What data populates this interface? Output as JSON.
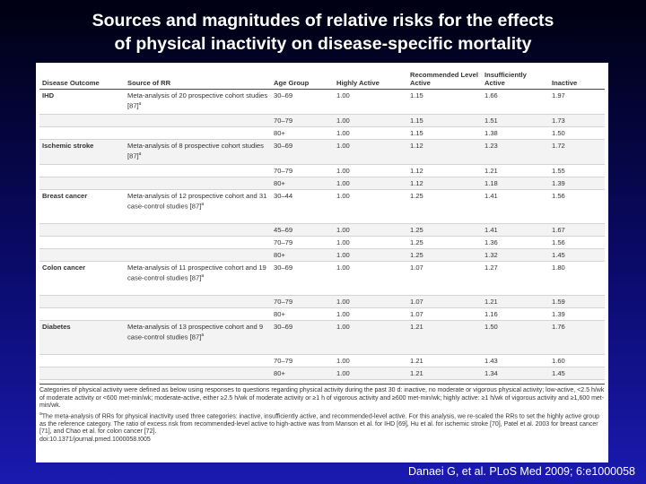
{
  "slide": {
    "title_lines": [
      "Sources and magnitudes of relative risks for the effects",
      "of physical inactivity on disease-specific mortality"
    ],
    "citation": "Danaei G, et al. PLoS Med 2009; 6:e1000058"
  },
  "table": {
    "headers": [
      "Disease Outcome",
      "Source of RR",
      "Age Group",
      "Highly Active",
      "Recommended Level Active",
      "Insufficiently Active",
      "Inactive"
    ],
    "groups": [
      {
        "outcome": "IHD",
        "source": "Meta-analysis of 20 prospective cohort studies [87]",
        "note": "a",
        "rows": [
          [
            "30–69",
            "1.00",
            "1.15",
            "1.66",
            "1.97"
          ],
          [
            "70–79",
            "1.00",
            "1.15",
            "1.51",
            "1.73"
          ],
          [
            "80+",
            "1.00",
            "1.15",
            "1.38",
            "1.50"
          ]
        ]
      },
      {
        "outcome": "Ischemic stroke",
        "source": "Meta-analysis of 8 prospective cohort studies [87]",
        "note": "a",
        "rows": [
          [
            "30–69",
            "1.00",
            "1.12",
            "1.23",
            "1.72"
          ],
          [
            "70–79",
            "1.00",
            "1.12",
            "1.21",
            "1.55"
          ],
          [
            "80+",
            "1.00",
            "1.12",
            "1.18",
            "1.39"
          ]
        ]
      },
      {
        "outcome": "Breast cancer",
        "source": "Meta-analysis of 12 prospective cohort and 31 case-control studies [87]",
        "note": "a",
        "rows": [
          [
            "30–44",
            "1.00",
            "1.25",
            "1.41",
            "1.56"
          ],
          [
            "45–69",
            "1.00",
            "1.25",
            "1.41",
            "1.67"
          ],
          [
            "70–79",
            "1.00",
            "1.25",
            "1.36",
            "1.56"
          ],
          [
            "80+",
            "1.00",
            "1.25",
            "1.32",
            "1.45"
          ]
        ]
      },
      {
        "outcome": "Colon cancer",
        "source": "Meta-analysis of 11 prospective cohort and 19 case-control studies [87]",
        "note": "a",
        "rows": [
          [
            "30–69",
            "1.00",
            "1.07",
            "1.27",
            "1.80"
          ],
          [
            "70–79",
            "1.00",
            "1.07",
            "1.21",
            "1.59"
          ],
          [
            "80+",
            "1.00",
            "1.07",
            "1.16",
            "1.39"
          ]
        ]
      },
      {
        "outcome": "Diabetes",
        "source": "Meta-analysis of 13 prospective cohort and 9 case-control studies [87]",
        "note": "a",
        "rows": [
          [
            "30–69",
            "1.00",
            "1.21",
            "1.50",
            "1.76"
          ],
          [
            "70–79",
            "1.00",
            "1.21",
            "1.43",
            "1.60"
          ],
          [
            "80+",
            "1.00",
            "1.21",
            "1.34",
            "1.45"
          ]
        ]
      }
    ],
    "footnotes": {
      "definition": "Categories of physical activity were defined as below using responses to questions regarding physical activity during the past 30 d: inactive, no moderate or vigorous physical activity; low-active, <2.5 h/wk of moderate activity or <600 met-min/wk; moderate-active, either ≥2.5 h/wk of moderate activity or ≥1 h of vigorous activity and ≥600 met-min/wk; highly active: ≥1 h/wk of vigorous activity and ≥1,600 met-min/wk.",
      "note": {
        "mark": "a",
        "text": "The meta-analysis of RRs for physical inactivity used three categories: inactive, insufficiently active, and recommended-level active. For this analysis, we re-scaled the RRs to set the highly active group as the reference category. The ratio of excess risk from recommended-level active to high-active was from Manson et al. for IHD [69], Hu et al. for ischemic stroke [70], Patel et al. 2003 for breast cancer [71], and Chao et al. for colon cancer [72]."
      },
      "doi": "doi:10.1371/journal.pmed.1000058.t005"
    }
  }
}
